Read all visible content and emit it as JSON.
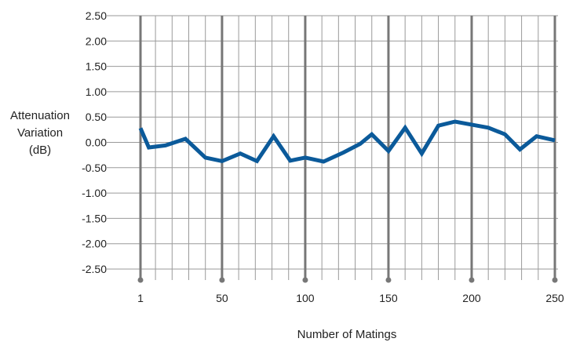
{
  "chart_data": {
    "type": "line",
    "title": "",
    "xlabel": "Number of Matings",
    "ylabel_lines": [
      "Attenuation",
      "Variation",
      "(dB)"
    ],
    "xlim": [
      1,
      250
    ],
    "ylim": [
      -2.5,
      2.5
    ],
    "x_ticks": [
      1,
      50,
      100,
      150,
      200,
      250
    ],
    "x_tick_labels": [
      "1",
      "50",
      "100",
      "150",
      "200",
      "250"
    ],
    "y_ticks": [
      2.5,
      2.0,
      1.5,
      1.0,
      0.5,
      0.0,
      -0.5,
      -1.0,
      -1.5,
      -2.0,
      -2.5
    ],
    "y_tick_labels": [
      "2.50",
      "2.00",
      "1.50",
      "1.00",
      "0.50",
      "0.00",
      "-0.50",
      "-1.00",
      "-1.50",
      "-2.00",
      "-2.50"
    ],
    "grid": true,
    "series": [
      {
        "color": "#0b5a9a",
        "x": [
          1,
          6,
          16,
          28,
          40,
          50,
          61,
          71,
          81,
          91,
          100,
          111,
          123,
          133,
          140,
          150,
          160,
          170,
          180,
          190,
          200,
          210,
          220,
          229,
          239,
          250
        ],
        "y": [
          0.28,
          -0.1,
          -0.06,
          0.07,
          -0.3,
          -0.37,
          -0.22,
          -0.37,
          0.12,
          -0.36,
          -0.3,
          -0.38,
          -0.2,
          -0.03,
          0.16,
          -0.17,
          0.29,
          -0.22,
          0.33,
          0.41,
          0.35,
          0.29,
          0.16,
          -0.14,
          0.12,
          0.04
        ]
      }
    ]
  }
}
